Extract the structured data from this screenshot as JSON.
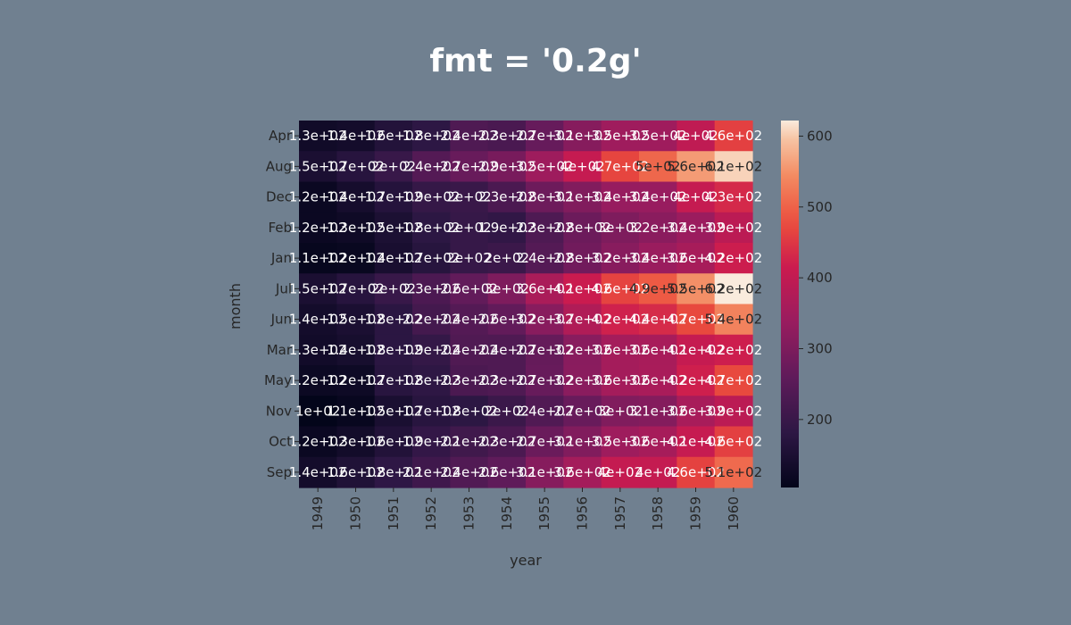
{
  "chart_data": {
    "type": "heatmap",
    "title": "fmt = '0.2g'",
    "xlabel": "year",
    "ylabel": "month",
    "x": [
      "1949",
      "1950",
      "1951",
      "1952",
      "1953",
      "1954",
      "1955",
      "1956",
      "1957",
      "1958",
      "1959",
      "1960"
    ],
    "y": [
      "Apr",
      "Aug",
      "Dec",
      "Feb",
      "Jan",
      "Jul",
      "Jun",
      "Mar",
      "May",
      "Nov",
      "Oct",
      "Sep"
    ],
    "values": [
      [
        129,
        135,
        163,
        181,
        235,
        227,
        269,
        313,
        348,
        348,
        396,
        461
      ],
      [
        148,
        170,
        199,
        242,
        272,
        293,
        347,
        405,
        467,
        505,
        559,
        606
      ],
      [
        118,
        140,
        166,
        194,
        201,
        229,
        278,
        306,
        336,
        337,
        405,
        432
      ],
      [
        118,
        126,
        150,
        180,
        196,
        188,
        233,
        277,
        301,
        318,
        342,
        391
      ],
      [
        112,
        115,
        145,
        171,
        196,
        204,
        242,
        284,
        315,
        340,
        360,
        417
      ],
      [
        148,
        170,
        199,
        230,
        264,
        302,
        364,
        413,
        465,
        491,
        548,
        622
      ],
      [
        135,
        149,
        178,
        218,
        243,
        264,
        315,
        374,
        422,
        435,
        472,
        535
      ],
      [
        132,
        141,
        178,
        193,
        236,
        235,
        267,
        317,
        356,
        362,
        406,
        419
      ],
      [
        121,
        125,
        172,
        183,
        229,
        234,
        270,
        318,
        355,
        363,
        420,
        472
      ],
      [
        104,
        114,
        146,
        172,
        180,
        203,
        237,
        271,
        305,
        310,
        362,
        390
      ],
      [
        119,
        133,
        162,
        191,
        211,
        229,
        274,
        306,
        347,
        359,
        407,
        461
      ],
      [
        136,
        158,
        184,
        209,
        237,
        259,
        312,
        355,
        404,
        404,
        463,
        508
      ]
    ],
    "annotations": [
      [
        "1.3e+02",
        "1.4e+02",
        "1.6e+02",
        "1.8e+02",
        "2.4e+02",
        "2.3e+02",
        "2.7e+02",
        "3.1e+02",
        "3.5e+02",
        "3.5e+02",
        "4e+02",
        "4.6e+02"
      ],
      [
        "1.5e+02",
        "1.7e+02",
        "2e+02",
        "2.4e+02",
        "2.7e+02",
        "2.9e+02",
        "3.5e+02",
        "4e+02",
        "4.7e+02",
        "5e+02",
        "5.6e+02",
        "6.1e+02"
      ],
      [
        "1.2e+02",
        "1.4e+02",
        "1.7e+02",
        "1.9e+02",
        "2e+02",
        "2.3e+02",
        "2.8e+02",
        "3.1e+02",
        "3.4e+02",
        "3.4e+02",
        "4e+02",
        "4.3e+02"
      ],
      [
        "1.2e+02",
        "1.3e+02",
        "1.5e+02",
        "1.8e+02",
        "2e+02",
        "1.9e+02",
        "2.3e+02",
        "2.8e+02",
        "3e+02",
        "3.2e+02",
        "3.4e+02",
        "3.9e+02"
      ],
      [
        "1.1e+02",
        "1.2e+02",
        "1.4e+02",
        "1.7e+02",
        "2e+02",
        "2e+02",
        "2.4e+02",
        "2.8e+02",
        "3.2e+02",
        "3.4e+02",
        "3.6e+02",
        "4.2e+02"
      ],
      [
        "1.5e+02",
        "1.7e+02",
        "2e+02",
        "2.3e+02",
        "2.6e+02",
        "3e+02",
        "3.6e+02",
        "4.1e+02",
        "4.6e+02",
        "4.9e+02",
        "5.5e+02",
        "6.2e+02"
      ],
      [
        "1.4e+02",
        "1.5e+02",
        "1.8e+02",
        "2.2e+02",
        "2.4e+02",
        "2.6e+02",
        "3.2e+02",
        "3.7e+02",
        "4.2e+02",
        "4.4e+02",
        "4.7e+02",
        "5.4e+02"
      ],
      [
        "1.3e+02",
        "1.4e+02",
        "1.8e+02",
        "1.9e+02",
        "2.4e+02",
        "2.4e+02",
        "2.7e+02",
        "3.2e+02",
        "3.6e+02",
        "3.6e+02",
        "4.1e+02",
        "4.2e+02"
      ],
      [
        "1.2e+02",
        "1.2e+02",
        "1.7e+02",
        "1.8e+02",
        "2.3e+02",
        "2.3e+02",
        "2.7e+02",
        "3.2e+02",
        "3.6e+02",
        "3.6e+02",
        "4.2e+02",
        "4.7e+02"
      ],
      [
        "1e+02",
        "1.1e+02",
        "1.5e+02",
        "1.7e+02",
        "1.8e+02",
        "2e+02",
        "2.4e+02",
        "2.7e+02",
        "3e+02",
        "3.1e+02",
        "3.6e+02",
        "3.9e+02"
      ],
      [
        "1.2e+02",
        "1.3e+02",
        "1.6e+02",
        "1.9e+02",
        "2.1e+02",
        "2.3e+02",
        "2.7e+02",
        "3.1e+02",
        "3.5e+02",
        "3.6e+02",
        "4.1e+02",
        "4.6e+02"
      ],
      [
        "1.4e+02",
        "1.6e+02",
        "1.8e+02",
        "2.1e+02",
        "2.4e+02",
        "2.6e+02",
        "3.1e+02",
        "3.6e+02",
        "4e+02",
        "4e+02",
        "4.6e+02",
        "5.1e+02"
      ]
    ],
    "colorbar": {
      "ticks": [
        200,
        300,
        400,
        500,
        600
      ],
      "range": [
        104,
        622
      ],
      "colormap": "rocket"
    },
    "legend": "colorbar-right"
  }
}
